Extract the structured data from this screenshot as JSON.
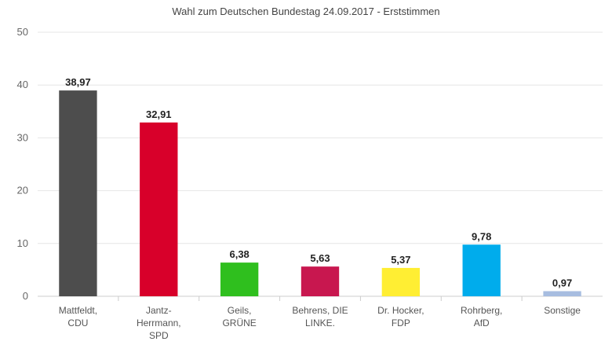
{
  "chart_data": {
    "type": "bar",
    "title": "Wahl zum Deutschen Bundestag 24.09.2017 - Erststimmen",
    "xlabel": "",
    "ylabel": "",
    "ylim": [
      0,
      50
    ],
    "yticks": [
      0,
      10,
      20,
      30,
      40,
      50
    ],
    "grid": true,
    "legend": "none",
    "categories": [
      [
        "Mattfeldt,",
        "CDU"
      ],
      [
        "Jantz-",
        "Herrmann,",
        "SPD"
      ],
      [
        "Geils,",
        "GRÜNE"
      ],
      [
        "Behrens, DIE",
        "LINKE."
      ],
      [
        "Dr. Hocker,",
        "FDP"
      ],
      [
        "Rohrberg,",
        "AfD"
      ],
      [
        "Sonstige"
      ]
    ],
    "values": [
      38.97,
      32.91,
      6.38,
      5.63,
      5.37,
      9.78,
      0.97
    ],
    "value_labels": [
      "38,97",
      "32,91",
      "6,38",
      "5,63",
      "5,37",
      "9,78",
      "0,97"
    ],
    "colors": [
      "#4d4d4d",
      "#d8002a",
      "#2fbf1e",
      "#c8174f",
      "#ffee33",
      "#00acec",
      "#a7bde0"
    ]
  }
}
